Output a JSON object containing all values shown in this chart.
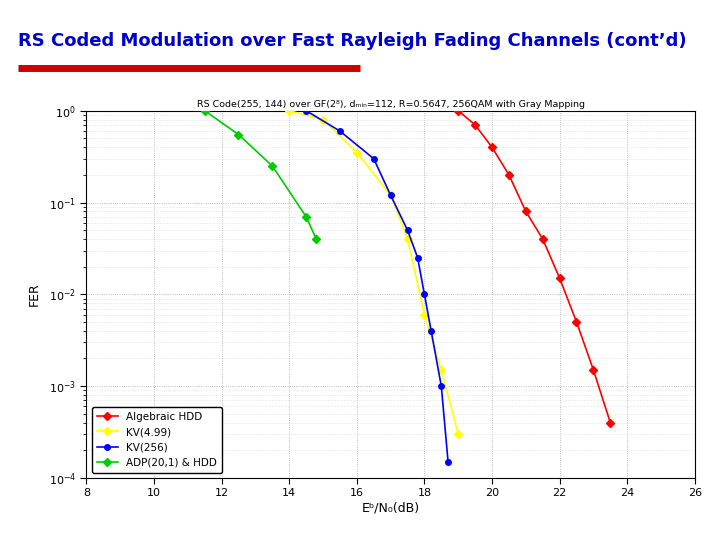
{
  "title": "RS Coded Modulation over Fast Rayleigh Fading Channels (cont’d)",
  "plot_title": "RS Code(255, 144) over GF(2⁸), dₘᵢₙ=112, R=0.5647, 256QAM with Gray Mapping",
  "xlabel": "Eᵇ/N₀(dB)",
  "ylabel": "FER",
  "xlim": [
    8,
    26
  ],
  "ylim_log": [
    -4,
    0
  ],
  "xticks": [
    8,
    10,
    12,
    14,
    16,
    18,
    20,
    22,
    24,
    26
  ],
  "slide_bg": "#d4d4d4",
  "box_bg": "#ffffff",
  "box_edge": "#cc0000",
  "title_color": "#0000cc",
  "title_fontsize": 13,
  "series": [
    {
      "label": "Algebraic HDD",
      "color": "#ff0000",
      "marker": "D",
      "x": [
        19.0,
        19.5,
        20.0,
        20.5,
        21.0,
        21.5,
        22.0,
        22.5,
        23.0,
        23.5
      ],
      "y": [
        1.0,
        0.7,
        0.4,
        0.2,
        0.08,
        0.04,
        0.015,
        0.005,
        0.0015,
        0.0004
      ]
    },
    {
      "label": "KV(4.99)",
      "color": "#ffff00",
      "marker": "D",
      "x": [
        14.0,
        15.0,
        16.0,
        17.0,
        17.5,
        18.0,
        18.5,
        19.0
      ],
      "y": [
        1.0,
        0.8,
        0.35,
        0.12,
        0.04,
        0.006,
        0.0015,
        0.0003
      ]
    },
    {
      "label": "KV(256)",
      "color": "#0000ff",
      "marker": "o",
      "x": [
        14.5,
        15.5,
        16.5,
        17.0,
        17.5,
        17.8,
        18.0,
        18.2,
        18.5,
        18.7
      ],
      "y": [
        1.0,
        0.6,
        0.3,
        0.12,
        0.05,
        0.025,
        0.01,
        0.004,
        0.001,
        0.00015
      ]
    },
    {
      "label": "ADP(20,1) & HDD",
      "color": "#00cc00",
      "marker": "D",
      "x": [
        11.5,
        12.5,
        13.5,
        14.5,
        14.8
      ],
      "y": [
        1.0,
        0.55,
        0.25,
        0.07,
        0.04
      ]
    }
  ]
}
